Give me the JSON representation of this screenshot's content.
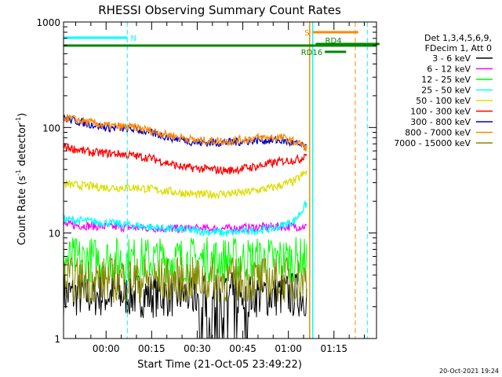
{
  "chart_data": {
    "type": "line",
    "title": "RHESSI Observing Summary Count Rates",
    "xlabel": "Start Time (21-Oct-05 23:49:22)",
    "ylabel": "Count Rate (s",
    "ylabel_sup1": "-1",
    "ylabel_mid": " detector",
    "ylabel_sup2": "-1",
    "ylabel_end": ")",
    "y_scale": "log",
    "ylim": [
      1,
      1000
    ],
    "y_ticks": [
      "1",
      "10",
      "100",
      "1000"
    ],
    "x_range_minutes": [
      -14,
      89
    ],
    "x_ticks": [
      {
        "label": "00:00",
        "min": 0
      },
      {
        "label": "00:15",
        "min": 15
      },
      {
        "label": "00:30",
        "min": 30
      },
      {
        "label": "00:45",
        "min": 45
      },
      {
        "label": "01:00",
        "min": 60
      },
      {
        "label": "01:15",
        "min": 75
      }
    ],
    "legend_header": [
      "Det 1,3,4,5,6,9,",
      "FDecim 1, Att 0"
    ],
    "legend_position": "right",
    "series": [
      {
        "name": "3 - 6 keV",
        "color": "#000000",
        "level": 2.6,
        "noise": "high",
        "gaps": [
          [
            28,
            47
          ]
        ]
      },
      {
        "name": "6 - 12 keV",
        "color": "#ff00ff",
        "points": [
          [
            -14,
            12
          ],
          [
            0,
            11.5
          ],
          [
            20,
            11
          ],
          [
            40,
            11
          ],
          [
            55,
            11.5
          ],
          [
            66,
            11.5
          ]
        ]
      },
      {
        "name": "12 - 25 keV",
        "color": "#00ff00",
        "level": 5.6,
        "noise": "high"
      },
      {
        "name": "25 - 50 keV",
        "color": "#00ffff",
        "points": [
          [
            -14,
            13.5
          ],
          [
            0,
            12.5
          ],
          [
            20,
            11
          ],
          [
            40,
            10
          ],
          [
            55,
            11
          ],
          [
            62,
            13
          ],
          [
            66,
            19
          ]
        ]
      },
      {
        "name": "50 - 100 keV",
        "color": "#dddd00",
        "points": [
          [
            -14,
            29
          ],
          [
            0,
            27
          ],
          [
            10,
            27
          ],
          [
            20,
            25
          ],
          [
            30,
            23
          ],
          [
            45,
            24
          ],
          [
            55,
            27
          ],
          [
            62,
            31
          ],
          [
            66,
            38
          ]
        ]
      },
      {
        "name": "100 - 300 keV",
        "color": "#ff0000",
        "points": [
          [
            -14,
            66
          ],
          [
            -5,
            58
          ],
          [
            5,
            56
          ],
          [
            15,
            51
          ],
          [
            25,
            42
          ],
          [
            40,
            39
          ],
          [
            50,
            43
          ],
          [
            58,
            48
          ],
          [
            64,
            50
          ],
          [
            66,
            58
          ]
        ]
      },
      {
        "name": "300 - 800 keV",
        "color": "#0000cc",
        "points": [
          [
            -14,
            122
          ],
          [
            0,
            100
          ],
          [
            10,
            96
          ],
          [
            20,
            82
          ],
          [
            30,
            72
          ],
          [
            40,
            72
          ],
          [
            50,
            76
          ],
          [
            58,
            75
          ],
          [
            64,
            68
          ],
          [
            66,
            63
          ]
        ]
      },
      {
        "name": "800 - 7000 keV",
        "color": "#ff8800",
        "points": [
          [
            -14,
            125
          ],
          [
            0,
            104
          ],
          [
            10,
            100
          ],
          [
            20,
            86
          ],
          [
            30,
            75
          ],
          [
            40,
            74
          ],
          [
            50,
            80
          ],
          [
            58,
            80
          ],
          [
            64,
            70
          ],
          [
            66,
            64
          ]
        ]
      },
      {
        "name": "7000 - 15000 keV",
        "color": "#888800",
        "level": 3.6,
        "noise": "high"
      }
    ],
    "annotations": [
      {
        "label": "N",
        "color": "#00ffff",
        "x_min": [
          -14,
          7
        ]
      },
      {
        "label": "S",
        "color": "#ff8800",
        "x_min": [
          68,
          83
        ]
      },
      {
        "label": "RD4",
        "color": "#008800",
        "x_min": [
          69,
          90
        ]
      },
      {
        "label": "RD16",
        "color": "#008800",
        "x_min": [
          72,
          79
        ]
      }
    ],
    "vertical_markers": [
      {
        "min": 7,
        "color": "#00ffff",
        "style": "dashed"
      },
      {
        "min": 67,
        "color": "#ff8800",
        "style": "solid"
      },
      {
        "min": 68,
        "color": "#00ffff",
        "style": "solid"
      },
      {
        "min": 82,
        "color": "#ff8800",
        "style": "dashed"
      },
      {
        "min": 86,
        "color": "#00ffff",
        "style": "dashed"
      }
    ],
    "saa_bar_color": "#008800",
    "footer": "20-Oct-2021 19:24"
  }
}
